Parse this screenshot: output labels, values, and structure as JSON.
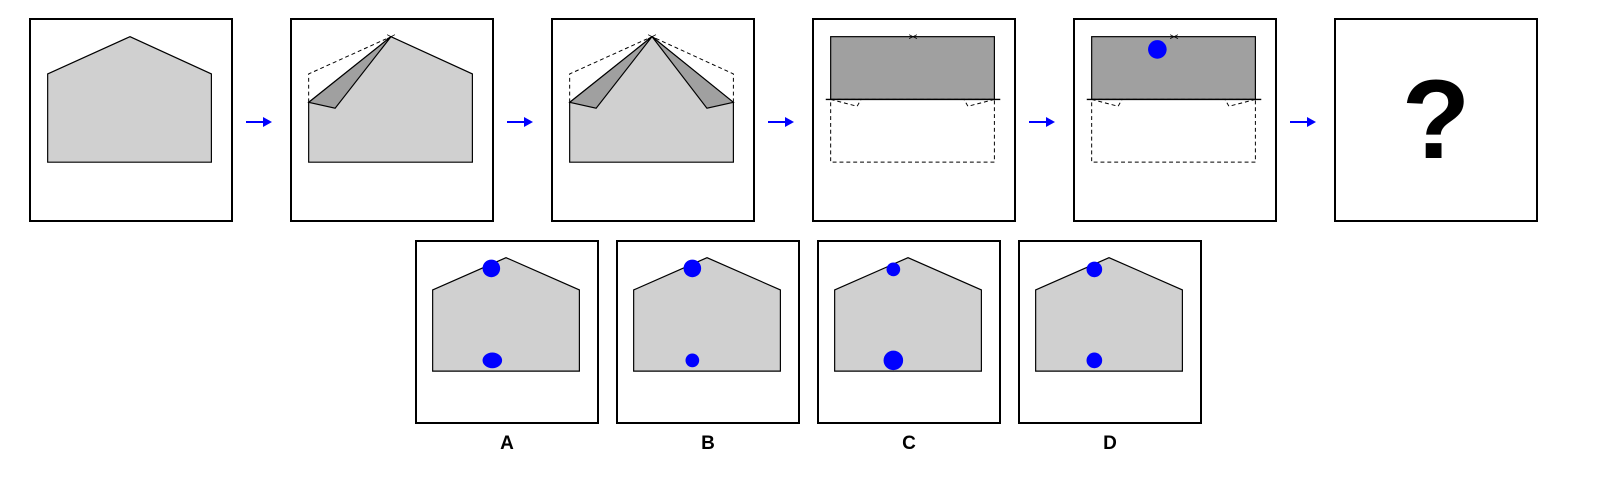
{
  "question_mark": "?",
  "options": [
    {
      "label": "A"
    },
    {
      "label": "B"
    },
    {
      "label": "C"
    },
    {
      "label": "D"
    }
  ],
  "colors": {
    "paper": "#d0d0d0",
    "folded": "#a0a0a0",
    "hole": "#0000ff",
    "arrow": "#0000ff"
  }
}
